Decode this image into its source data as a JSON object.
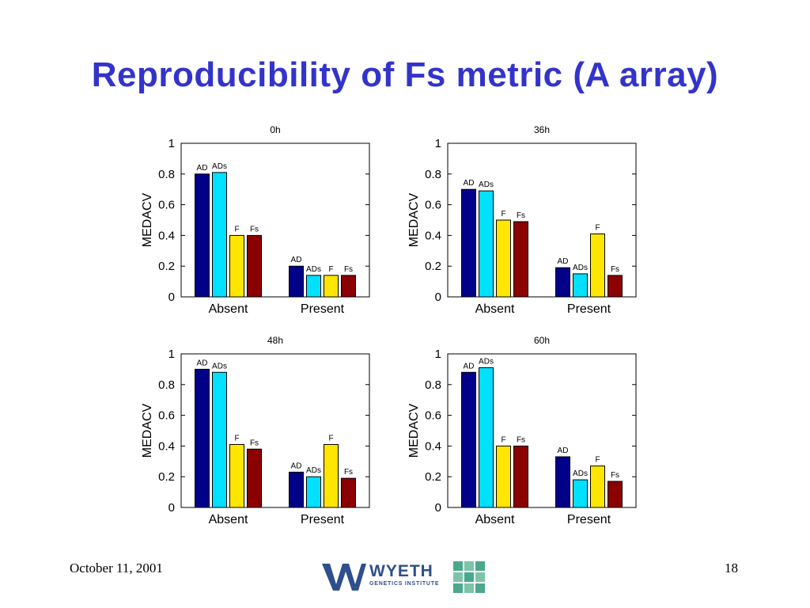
{
  "slide": {
    "title": "Reproducibility of Fs metric (A array)",
    "footer_date": "October 11, 2001",
    "page_number": "18",
    "logo_text": "WYETH",
    "logo_subtext": "GENETICS INSTITUTE"
  },
  "colors": {
    "title": "#3333cc",
    "AD": "#000088",
    "ADs": "#00e0ff",
    "F": "#ffe600",
    "Fs": "#8b0000",
    "logo": "#2e4f8c",
    "logo_accent": "#4aa88c"
  },
  "chart_data": [
    {
      "type": "bar",
      "title": "0h",
      "ylabel": "MEDACV",
      "xlabel": "",
      "ylim": [
        0,
        1
      ],
      "yticks": [
        "0",
        "0.2",
        "0.4",
        "0.6",
        "0.8",
        "1"
      ],
      "categories": [
        "Absent",
        "Present"
      ],
      "series": [
        {
          "name": "AD",
          "values": [
            0.8,
            0.2
          ]
        },
        {
          "name": "ADs",
          "values": [
            0.81,
            0.14
          ]
        },
        {
          "name": "F",
          "values": [
            0.4,
            0.14
          ]
        },
        {
          "name": "Fs",
          "values": [
            0.4,
            0.14
          ]
        }
      ]
    },
    {
      "type": "bar",
      "title": "36h",
      "ylabel": "MEDACV",
      "xlabel": "",
      "ylim": [
        0,
        1
      ],
      "yticks": [
        "0",
        "0.2",
        "0.4",
        "0.6",
        "0.8",
        "1"
      ],
      "categories": [
        "Absent",
        "Present"
      ],
      "series": [
        {
          "name": "AD",
          "values": [
            0.7,
            0.19
          ]
        },
        {
          "name": "ADs",
          "values": [
            0.69,
            0.15
          ]
        },
        {
          "name": "F",
          "values": [
            0.5,
            0.41
          ]
        },
        {
          "name": "Fs",
          "values": [
            0.49,
            0.14
          ]
        }
      ]
    },
    {
      "type": "bar",
      "title": "48h",
      "ylabel": "MEDACV",
      "xlabel": "",
      "ylim": [
        0,
        1
      ],
      "yticks": [
        "0",
        "0.2",
        "0.4",
        "0.6",
        "0.8",
        "1"
      ],
      "categories": [
        "Absent",
        "Present"
      ],
      "series": [
        {
          "name": "AD",
          "values": [
            0.9,
            0.23
          ]
        },
        {
          "name": "ADs",
          "values": [
            0.88,
            0.2
          ]
        },
        {
          "name": "F",
          "values": [
            0.41,
            0.41
          ]
        },
        {
          "name": "Fs",
          "values": [
            0.38,
            0.19
          ]
        }
      ]
    },
    {
      "type": "bar",
      "title": "60h",
      "ylabel": "MEDACV",
      "xlabel": "",
      "ylim": [
        0,
        1
      ],
      "yticks": [
        "0",
        "0.2",
        "0.4",
        "0.6",
        "0.8",
        "1"
      ],
      "categories": [
        "Absent",
        "Present"
      ],
      "series": [
        {
          "name": "AD",
          "values": [
            0.88,
            0.33
          ]
        },
        {
          "name": "ADs",
          "values": [
            0.91,
            0.18
          ]
        },
        {
          "name": "F",
          "values": [
            0.4,
            0.27
          ]
        },
        {
          "name": "Fs",
          "values": [
            0.4,
            0.17
          ]
        }
      ]
    }
  ]
}
